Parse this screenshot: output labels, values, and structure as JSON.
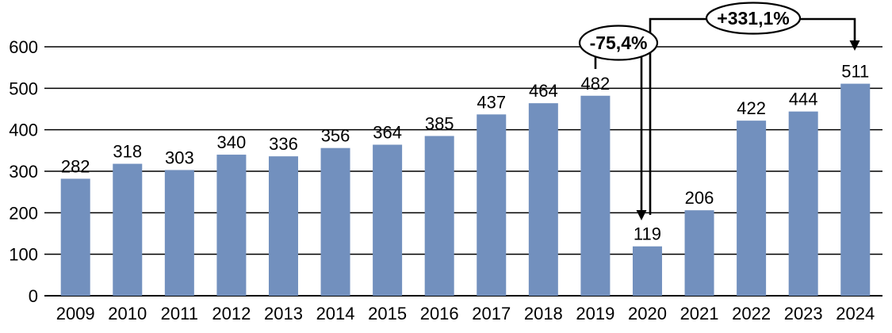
{
  "chart_data": {
    "type": "bar",
    "title": "",
    "xlabel": "",
    "ylabel": "",
    "categories": [
      "2009",
      "2010",
      "2011",
      "2012",
      "2013",
      "2014",
      "2015",
      "2016",
      "2017",
      "2018",
      "2019",
      "2020",
      "2021",
      "2022",
      "2023",
      "2024"
    ],
    "values": [
      282,
      318,
      303,
      340,
      336,
      356,
      364,
      385,
      437,
      464,
      482,
      119,
      206,
      422,
      444,
      511
    ],
    "ylim": [
      0,
      650
    ],
    "y_ticks": [
      0,
      100,
      200,
      300,
      400,
      500,
      600
    ],
    "grid": "horizontal",
    "legend": "none",
    "bar_color": "#7290BE",
    "annotation_color": "#000000",
    "annotations": [
      {
        "label": "-75,4%",
        "shape": "oval-callout",
        "from_category": "2019",
        "to_category": "2020"
      },
      {
        "label": "+331,1%",
        "shape": "oval-callout",
        "from_category": "2020",
        "to_category": "2024"
      }
    ]
  }
}
